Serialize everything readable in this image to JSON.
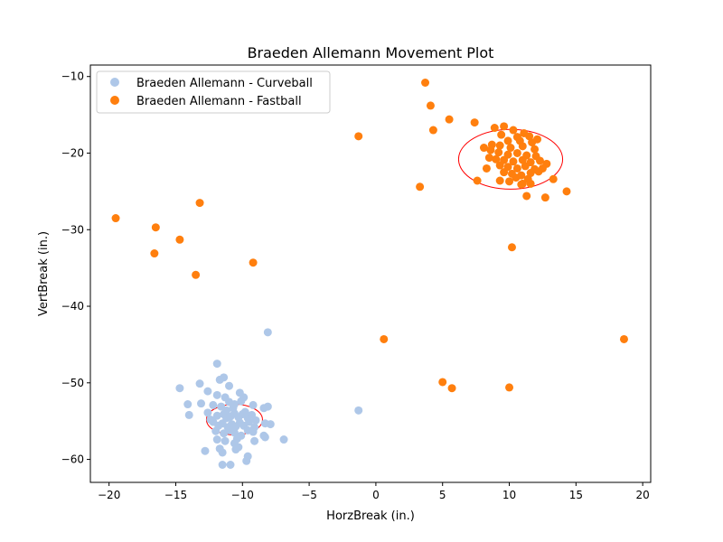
{
  "chart_data": {
    "type": "scatter",
    "title": "Braeden Allemann Movement Plot",
    "xlabel": "HorzBreak (in.)",
    "ylabel": "VertBreak (in.)",
    "xlim": [
      -21.4,
      20.6
    ],
    "ylim": [
      -63.0,
      -8.5
    ],
    "xticks": [
      -20,
      -15,
      -10,
      -5,
      0,
      5,
      10,
      15,
      20
    ],
    "yticks": [
      -60,
      -50,
      -40,
      -30,
      -20,
      -10
    ],
    "grid": false,
    "legend_position": "top-left",
    "series": [
      {
        "name": "Braeden Allemann - Curveball",
        "color": "#aec7e8",
        "ellipse": {
          "cx": -10.6,
          "cy": -54.8,
          "rx": 2.1,
          "ry": 2.0
        },
        "points": [
          [
            -11.9,
            -47.5
          ],
          [
            -11.4,
            -49.3
          ],
          [
            -11.7,
            -49.6
          ],
          [
            -11.0,
            -50.4
          ],
          [
            -8.1,
            -43.4
          ],
          [
            -14.7,
            -50.7
          ],
          [
            -13.2,
            -50.1
          ],
          [
            -11.9,
            -51.6
          ],
          [
            -11.3,
            -51.9
          ],
          [
            -12.6,
            -51.1
          ],
          [
            -10.2,
            -51.3
          ],
          [
            -9.9,
            -51.9
          ],
          [
            -14.1,
            -52.8
          ],
          [
            -13.1,
            -52.7
          ],
          [
            -12.2,
            -52.9
          ],
          [
            -11.6,
            -53.1
          ],
          [
            -11.0,
            -52.5
          ],
          [
            -10.6,
            -52.8
          ],
          [
            -10.1,
            -52.4
          ],
          [
            -9.2,
            -52.9
          ],
          [
            -8.4,
            -53.3
          ],
          [
            -8.1,
            -53.1
          ],
          [
            -14.0,
            -54.2
          ],
          [
            -12.6,
            -53.9
          ],
          [
            -11.9,
            -54.3
          ],
          [
            -11.4,
            -54.1
          ],
          [
            -11.2,
            -54.6
          ],
          [
            -10.9,
            -54.4
          ],
          [
            -10.6,
            -54.0
          ],
          [
            -10.3,
            -54.5
          ],
          [
            -10.0,
            -54.1
          ],
          [
            -9.6,
            -54.6
          ],
          [
            -9.3,
            -54.2
          ],
          [
            -12.2,
            -55.1
          ],
          [
            -11.8,
            -55.6
          ],
          [
            -11.5,
            -55.3
          ],
          [
            -11.1,
            -55.8
          ],
          [
            -10.8,
            -55.4
          ],
          [
            -10.5,
            -55.7
          ],
          [
            -10.2,
            -55.2
          ],
          [
            -9.9,
            -55.6
          ],
          [
            -9.5,
            -55.1
          ],
          [
            -9.1,
            -55.8
          ],
          [
            -8.3,
            -55.3
          ],
          [
            -7.9,
            -55.4
          ],
          [
            -12.0,
            -56.3
          ],
          [
            -11.4,
            -56.6
          ],
          [
            -11.0,
            -56.2
          ],
          [
            -10.6,
            -56.5
          ],
          [
            -10.1,
            -56.9
          ],
          [
            -9.6,
            -56.2
          ],
          [
            -9.2,
            -56.4
          ],
          [
            -11.9,
            -57.4
          ],
          [
            -11.3,
            -57.6
          ],
          [
            -10.4,
            -57.3
          ],
          [
            -8.4,
            -56.9
          ],
          [
            -8.3,
            -57.1
          ],
          [
            -6.9,
            -57.4
          ],
          [
            -9.1,
            -57.6
          ],
          [
            -10.6,
            -57.9
          ],
          [
            -10.3,
            -58.4
          ],
          [
            -11.7,
            -58.6
          ],
          [
            -11.5,
            -59.1
          ],
          [
            -12.8,
            -58.9
          ],
          [
            -10.5,
            -58.7
          ],
          [
            -9.6,
            -59.6
          ],
          [
            -9.7,
            -60.2
          ],
          [
            -11.5,
            -60.7
          ],
          [
            -10.9,
            -60.7
          ],
          [
            -1.3,
            -53.6
          ],
          [
            -11.2,
            -53.6
          ],
          [
            -10.7,
            -53.3
          ],
          [
            -9.8,
            -53.8
          ],
          [
            -12.4,
            -54.8
          ],
          [
            -9.0,
            -54.9
          ]
        ]
      },
      {
        "name": "Braeden Allemann - Fastball",
        "color": "#ff7f0e",
        "ellipse": {
          "cx": 10.1,
          "cy": -20.8,
          "rx": 3.9,
          "ry": 3.9
        },
        "points": [
          [
            3.7,
            -10.8
          ],
          [
            4.1,
            -13.8
          ],
          [
            5.5,
            -15.6
          ],
          [
            4.3,
            -17.0
          ],
          [
            7.4,
            -16.0
          ],
          [
            -1.3,
            -17.8
          ],
          [
            3.3,
            -24.4
          ],
          [
            -13.2,
            -26.5
          ],
          [
            -19.5,
            -28.5
          ],
          [
            -16.5,
            -29.7
          ],
          [
            -14.7,
            -31.3
          ],
          [
            -16.6,
            -33.1
          ],
          [
            -13.5,
            -35.9
          ],
          [
            -9.2,
            -34.3
          ],
          [
            10.2,
            -32.3
          ],
          [
            0.6,
            -44.3
          ],
          [
            18.6,
            -44.3
          ],
          [
            5.0,
            -49.9
          ],
          [
            5.7,
            -50.7
          ],
          [
            10.0,
            -50.6
          ],
          [
            14.3,
            -25.0
          ],
          [
            12.7,
            -25.8
          ],
          [
            11.3,
            -25.6
          ],
          [
            13.3,
            -23.4
          ],
          [
            7.6,
            -23.6
          ],
          [
            9.3,
            -23.6
          ],
          [
            10.0,
            -23.7
          ],
          [
            11.0,
            -24.0
          ],
          [
            8.3,
            -22.0
          ],
          [
            9.6,
            -22.5
          ],
          [
            12.8,
            -21.4
          ],
          [
            12.5,
            -22.0
          ],
          [
            8.9,
            -16.7
          ],
          [
            9.6,
            -16.5
          ],
          [
            10.3,
            -17.0
          ],
          [
            9.4,
            -17.6
          ],
          [
            10.6,
            -17.9
          ],
          [
            11.1,
            -17.4
          ],
          [
            11.5,
            -17.8
          ],
          [
            9.9,
            -18.4
          ],
          [
            10.8,
            -18.4
          ],
          [
            11.7,
            -18.6
          ],
          [
            12.1,
            -18.2
          ],
          [
            8.7,
            -18.9
          ],
          [
            9.3,
            -19.0
          ],
          [
            10.1,
            -19.3
          ],
          [
            11.0,
            -19.1
          ],
          [
            11.9,
            -19.5
          ],
          [
            8.1,
            -19.3
          ],
          [
            8.6,
            -19.6
          ],
          [
            9.2,
            -19.9
          ],
          [
            9.9,
            -20.2
          ],
          [
            10.6,
            -20.0
          ],
          [
            11.3,
            -20.3
          ],
          [
            12.0,
            -20.4
          ],
          [
            8.5,
            -20.6
          ],
          [
            9.0,
            -20.8
          ],
          [
            9.6,
            -20.9
          ],
          [
            10.3,
            -21.1
          ],
          [
            11.0,
            -20.9
          ],
          [
            11.6,
            -21.2
          ],
          [
            12.3,
            -21.0
          ],
          [
            9.3,
            -21.6
          ],
          [
            9.9,
            -21.8
          ],
          [
            10.6,
            -22.0
          ],
          [
            11.2,
            -21.7
          ],
          [
            11.9,
            -22.1
          ],
          [
            10.2,
            -22.7
          ],
          [
            10.9,
            -22.9
          ],
          [
            11.6,
            -22.6
          ],
          [
            12.2,
            -22.4
          ],
          [
            10.5,
            -23.2
          ],
          [
            11.4,
            -23.4
          ],
          [
            10.9,
            -24.1
          ],
          [
            11.6,
            -24.0
          ]
        ]
      }
    ]
  }
}
